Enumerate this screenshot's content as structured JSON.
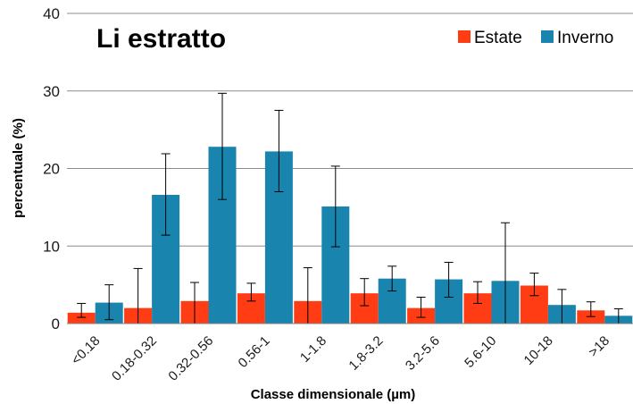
{
  "chart_data": {
    "type": "bar",
    "title": "Li estratto",
    "xlabel": "Classe dimensionale (µm)",
    "ylabel": "percentuale (%)",
    "ylim": [
      0,
      40
    ],
    "yticks": [
      0,
      10,
      20,
      30,
      40
    ],
    "grid": true,
    "legend_position": "top-right",
    "categories": [
      "<0.18",
      "0.18-0.32",
      "0.32-0.56",
      "0.56-1",
      "1-1.8",
      "1.8-3.2",
      "3.2-5.6",
      "5.6-10",
      "10-18",
      ">18"
    ],
    "series": [
      {
        "name": "Estate",
        "color": "#ff3c14",
        "values": [
          1.4,
          2.0,
          2.9,
          3.9,
          2.9,
          3.9,
          2.0,
          3.9,
          4.9,
          1.7
        ],
        "err_low": [
          0.6,
          2.0,
          2.9,
          1.0,
          2.9,
          1.6,
          1.2,
          1.3,
          1.3,
          0.8
        ],
        "err_high": [
          1.2,
          5.1,
          2.4,
          1.3,
          4.3,
          1.9,
          1.4,
          1.5,
          1.6,
          1.1
        ]
      },
      {
        "name": "Inverno",
        "color": "#1985ae",
        "values": [
          2.7,
          16.6,
          22.8,
          22.2,
          15.1,
          5.8,
          5.7,
          5.5,
          2.4,
          1.0
        ],
        "err_low": [
          2.2,
          5.2,
          6.8,
          5.2,
          5.2,
          1.6,
          2.3,
          5.5,
          2.4,
          1.0
        ],
        "err_high": [
          2.3,
          5.3,
          6.9,
          5.3,
          5.2,
          1.6,
          2.2,
          7.5,
          2.0,
          0.9
        ]
      }
    ]
  }
}
